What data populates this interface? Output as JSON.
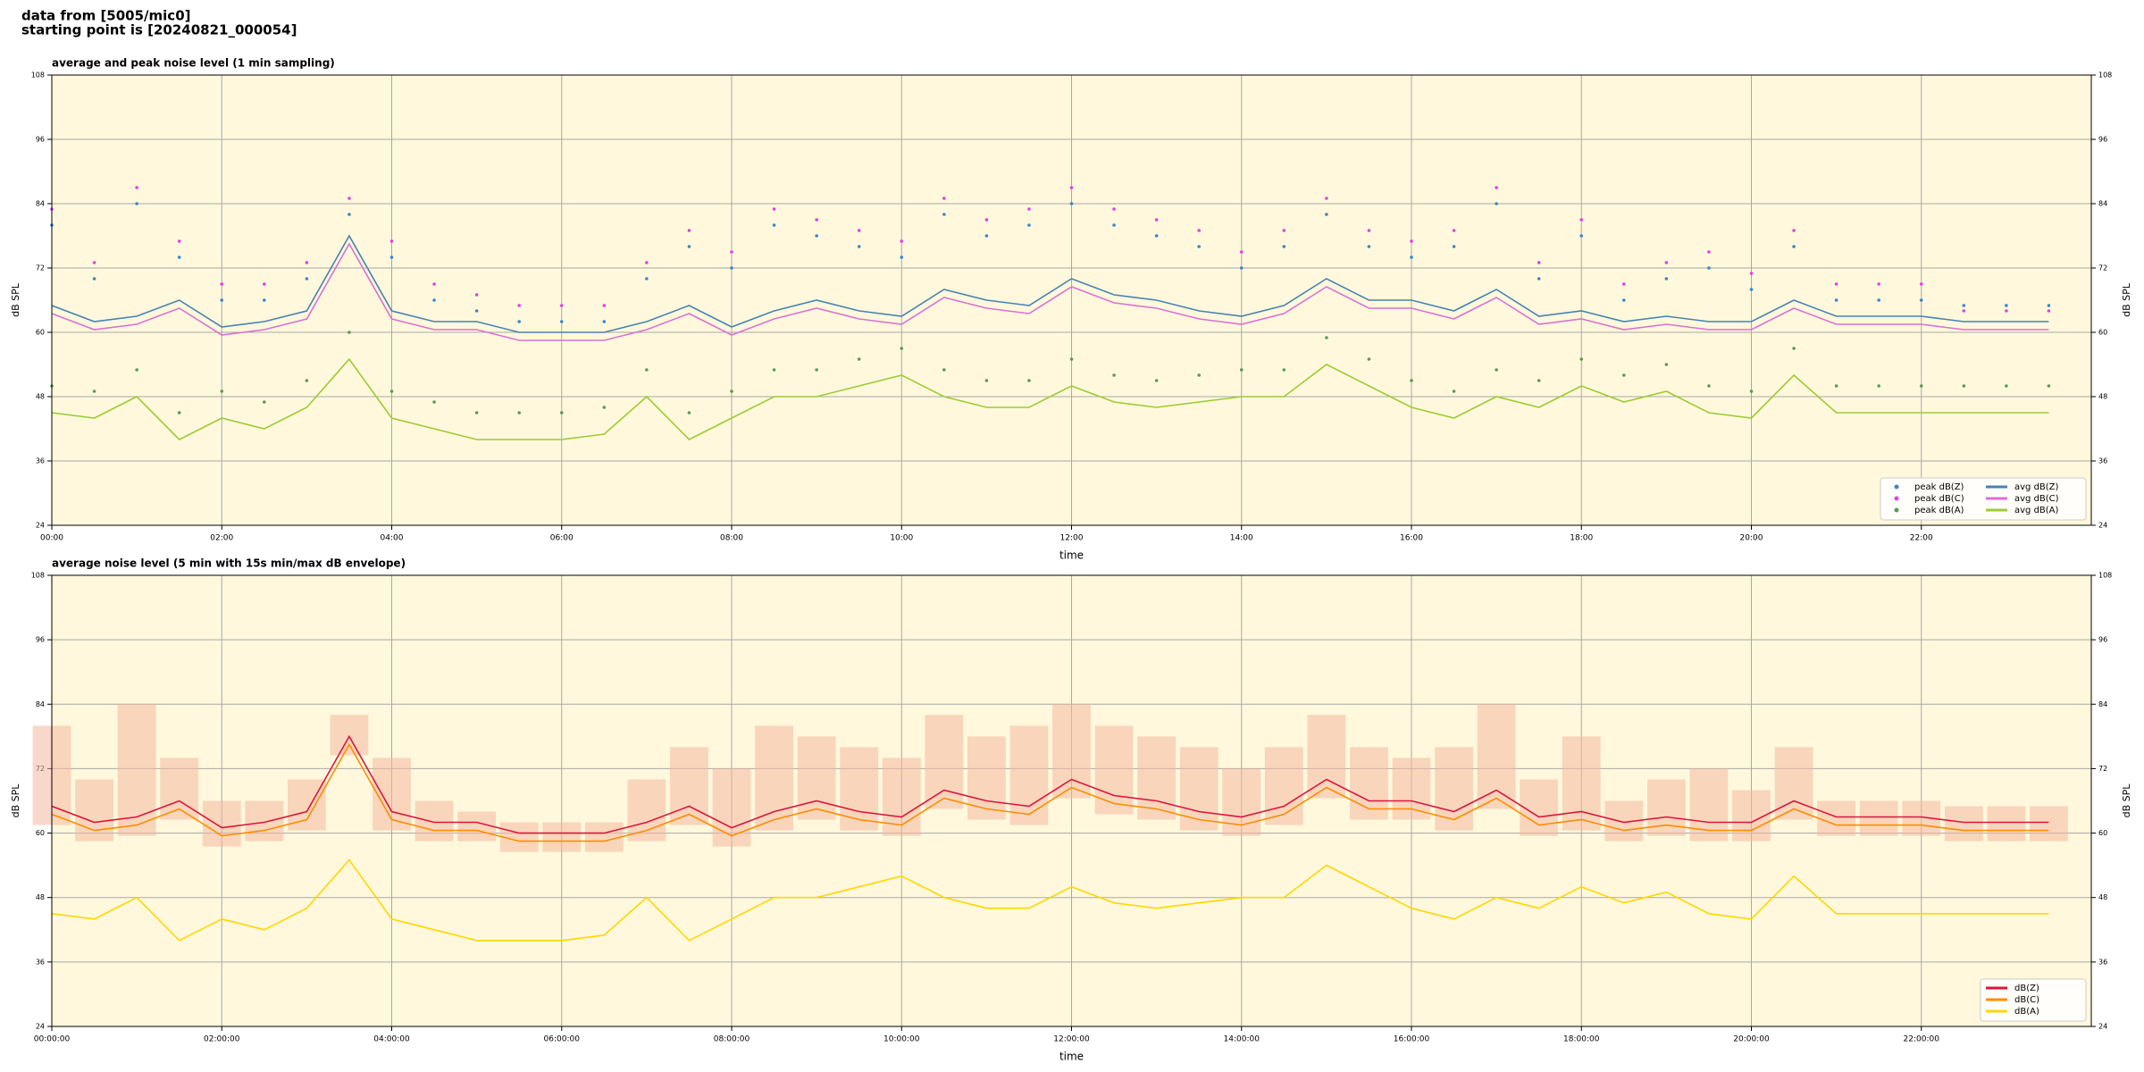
{
  "header": {
    "lines": [
      "data from [5005/mic0]",
      "starting point is [20240821_000054]"
    ]
  },
  "chart_data": [
    {
      "type": "line",
      "title": "average and peak noise level (1 min sampling)",
      "xlabel": "time",
      "ylabel": "dB SPL",
      "xlim": [
        0,
        24
      ],
      "ylim": [
        24,
        108
      ],
      "yticks": [
        24,
        36,
        48,
        60,
        72,
        84,
        96,
        108
      ],
      "xticks": [
        {
          "value": 0,
          "label": "00:00"
        },
        {
          "value": 2,
          "label": "02:00"
        },
        {
          "value": 4,
          "label": "04:00"
        },
        {
          "value": 6,
          "label": "06:00"
        },
        {
          "value": 8,
          "label": "08:00"
        },
        {
          "value": 10,
          "label": "10:00"
        },
        {
          "value": 12,
          "label": "12:00"
        },
        {
          "value": 14,
          "label": "14:00"
        },
        {
          "value": 16,
          "label": "16:00"
        },
        {
          "value": 18,
          "label": "18:00"
        },
        {
          "value": 20,
          "label": "20:00"
        },
        {
          "value": 22,
          "label": "22:00"
        }
      ],
      "grid": true,
      "legend_loc": "lower right",
      "legend_ncol": 2,
      "x": [
        0,
        0.5,
        1,
        1.5,
        2,
        2.5,
        3,
        3.5,
        4,
        4.5,
        5,
        5.5,
        6,
        6.5,
        7,
        7.5,
        8,
        8.5,
        9,
        9.5,
        10,
        10.5,
        11,
        11.5,
        12,
        12.5,
        13,
        13.5,
        14,
        14.5,
        15,
        15.5,
        16,
        16.5,
        17,
        17.5,
        18,
        18.5,
        19,
        19.5,
        20,
        20.5,
        21,
        21.5,
        22,
        22.5,
        23,
        23.5
      ],
      "series": [
        {
          "name": "peak dB(Z)",
          "type": "scatter",
          "color": "#3a86c8",
          "values": [
            80,
            70,
            84,
            74,
            66,
            66,
            70,
            82,
            74,
            66,
            64,
            62,
            62,
            62,
            70,
            76,
            72,
            80,
            78,
            76,
            74,
            82,
            78,
            80,
            84,
            80,
            78,
            76,
            72,
            76,
            82,
            76,
            74,
            76,
            84,
            70,
            78,
            66,
            70,
            72,
            68,
            76,
            66,
            66,
            66,
            65,
            65,
            65
          ]
        },
        {
          "name": "peak dB(C)",
          "type": "scatter",
          "color": "#e040e0",
          "values": [
            83,
            73,
            87,
            77,
            69,
            69,
            73,
            85,
            77,
            69,
            67,
            65,
            65,
            65,
            73,
            79,
            75,
            83,
            81,
            79,
            77,
            85,
            81,
            83,
            87,
            83,
            81,
            79,
            75,
            79,
            85,
            79,
            77,
            79,
            87,
            73,
            81,
            69,
            73,
            75,
            71,
            79,
            69,
            69,
            69,
            64,
            64,
            64
          ]
        },
        {
          "name": "peak dB(A)",
          "type": "scatter",
          "color": "#5a9a5a",
          "values": [
            50,
            49,
            53,
            45,
            49,
            47,
            51,
            60,
            49,
            47,
            45,
            45,
            45,
            46,
            53,
            45,
            49,
            53,
            53,
            55,
            57,
            53,
            51,
            51,
            55,
            52,
            51,
            52,
            53,
            53,
            59,
            55,
            51,
            49,
            53,
            51,
            55,
            52,
            54,
            50,
            49,
            57,
            50,
            50,
            50,
            50,
            50,
            50
          ]
        },
        {
          "name": "avg dB(Z)",
          "type": "line",
          "color": "#4682b4",
          "values": [
            65,
            62,
            63,
            66,
            61,
            62,
            64,
            78,
            64,
            62,
            62,
            60,
            60,
            60,
            62,
            65,
            61,
            64,
            66,
            64,
            63,
            68,
            66,
            65,
            70,
            67,
            66,
            64,
            63,
            65,
            70,
            66,
            66,
            64,
            68,
            63,
            64,
            62,
            63,
            62,
            62,
            66,
            63,
            63,
            63,
            62,
            62,
            62
          ]
        },
        {
          "name": "avg dB(C)",
          "type": "line",
          "color": "#da70d6",
          "values": [
            63.5,
            60.5,
            61.5,
            64.5,
            59.5,
            60.5,
            62.5,
            76.5,
            62.5,
            60.5,
            60.5,
            58.5,
            58.5,
            58.5,
            60.5,
            63.5,
            59.5,
            62.5,
            64.5,
            62.5,
            61.5,
            66.5,
            64.5,
            63.5,
            68.5,
            65.5,
            64.5,
            62.5,
            61.5,
            63.5,
            68.5,
            64.5,
            64.5,
            62.5,
            66.5,
            61.5,
            62.5,
            60.5,
            61.5,
            60.5,
            60.5,
            64.5,
            61.5,
            61.5,
            61.5,
            60.5,
            60.5,
            60.5
          ]
        },
        {
          "name": "avg dB(A)",
          "type": "line",
          "color": "#9acd32",
          "values": [
            45,
            44,
            48,
            40,
            44,
            42,
            46,
            55,
            44,
            42,
            40,
            40,
            40,
            41,
            48,
            40,
            44,
            48,
            48,
            50,
            52,
            48,
            46,
            46,
            50,
            47,
            46,
            47,
            48,
            48,
            54,
            50,
            46,
            44,
            48,
            46,
            50,
            47,
            49,
            45,
            44,
            52,
            45,
            45,
            45,
            45,
            45,
            45
          ]
        }
      ]
    },
    {
      "type": "line",
      "title": "average noise level (5 min with 15s min/max dB envelope)",
      "xlabel": "time",
      "ylabel": "dB SPL",
      "xlim": [
        0,
        24
      ],
      "ylim": [
        24,
        108
      ],
      "yticks": [
        24,
        36,
        48,
        60,
        72,
        84,
        96,
        108
      ],
      "xticks": [
        {
          "value": 0,
          "label": "00:00:00"
        },
        {
          "value": 2,
          "label": "02:00:00"
        },
        {
          "value": 4,
          "label": "04:00:00"
        },
        {
          "value": 6,
          "label": "06:00:00"
        },
        {
          "value": 8,
          "label": "08:00:00"
        },
        {
          "value": 10,
          "label": "10:00:00"
        },
        {
          "value": 12,
          "label": "12:00:00"
        },
        {
          "value": 14,
          "label": "14:00:00"
        },
        {
          "value": 16,
          "label": "16:00:00"
        },
        {
          "value": 18,
          "label": "18:00:00"
        },
        {
          "value": 20,
          "label": "20:00:00"
        },
        {
          "value": 22,
          "label": "22:00:00"
        }
      ],
      "grid": true,
      "legend_loc": "lower right",
      "legend_ncol": 1,
      "x": [
        0,
        0.5,
        1,
        1.5,
        2,
        2.5,
        3,
        3.5,
        4,
        4.5,
        5,
        5.5,
        6,
        6.5,
        7,
        7.5,
        8,
        8.5,
        9,
        9.5,
        10,
        10.5,
        11,
        11.5,
        12,
        12.5,
        13,
        13.5,
        14,
        14.5,
        15,
        15.5,
        16,
        16.5,
        17,
        17.5,
        18,
        18.5,
        19,
        19.5,
        20,
        20.5,
        21,
        21.5,
        22,
        22.5,
        23,
        23.5
      ],
      "envelope": {
        "color": "#f4b8a0",
        "upper": [
          80,
          70,
          84,
          74,
          66,
          66,
          70,
          82,
          74,
          66,
          64,
          62,
          62,
          62,
          70,
          76,
          72,
          80,
          78,
          76,
          74,
          82,
          78,
          80,
          84,
          80,
          78,
          76,
          72,
          76,
          82,
          76,
          74,
          76,
          84,
          70,
          78,
          66,
          70,
          72,
          68,
          76,
          66,
          66,
          66,
          65,
          65,
          65
        ],
        "lower": [
          61.5,
          58.5,
          59.5,
          62.5,
          57.5,
          58.5,
          60.5,
          74.5,
          60.5,
          58.5,
          58.5,
          56.5,
          56.5,
          56.5,
          58.5,
          61.5,
          57.5,
          60.5,
          62.5,
          60.5,
          59.5,
          64.5,
          62.5,
          61.5,
          66.5,
          63.5,
          62.5,
          60.5,
          59.5,
          61.5,
          66.5,
          62.5,
          62.5,
          60.5,
          64.5,
          59.5,
          60.5,
          58.5,
          59.5,
          58.5,
          58.5,
          62.5,
          59.5,
          59.5,
          59.5,
          58.5,
          58.5,
          58.5
        ]
      },
      "series": [
        {
          "name": "dB(Z)",
          "type": "line",
          "color": "#dc143c",
          "values": [
            65,
            62,
            63,
            66,
            61,
            62,
            64,
            78,
            64,
            62,
            62,
            60,
            60,
            60,
            62,
            65,
            61,
            64,
            66,
            64,
            63,
            68,
            66,
            65,
            70,
            67,
            66,
            64,
            63,
            65,
            70,
            66,
            66,
            64,
            68,
            63,
            64,
            62,
            63,
            62,
            62,
            66,
            63,
            63,
            63,
            62,
            62,
            62
          ]
        },
        {
          "name": "dB(C)",
          "type": "line",
          "color": "#ff8c00",
          "values": [
            63.5,
            60.5,
            61.5,
            64.5,
            59.5,
            60.5,
            62.5,
            76.5,
            62.5,
            60.5,
            60.5,
            58.5,
            58.5,
            58.5,
            60.5,
            63.5,
            59.5,
            62.5,
            64.5,
            62.5,
            61.5,
            66.5,
            64.5,
            63.5,
            68.5,
            65.5,
            64.5,
            62.5,
            61.5,
            63.5,
            68.5,
            64.5,
            64.5,
            62.5,
            66.5,
            61.5,
            62.5,
            60.5,
            61.5,
            60.5,
            60.5,
            64.5,
            61.5,
            61.5,
            61.5,
            60.5,
            60.5,
            60.5
          ]
        },
        {
          "name": "dB(A)",
          "type": "line",
          "color": "#ffd700",
          "values": [
            45,
            44,
            48,
            40,
            44,
            42,
            46,
            55,
            44,
            42,
            40,
            40,
            40,
            41,
            48,
            40,
            44,
            48,
            48,
            50,
            52,
            48,
            46,
            46,
            50,
            47,
            46,
            47,
            48,
            48,
            54,
            50,
            46,
            44,
            48,
            46,
            50,
            47,
            49,
            45,
            44,
            52,
            45,
            45,
            45,
            45,
            45,
            45
          ]
        }
      ]
    }
  ]
}
